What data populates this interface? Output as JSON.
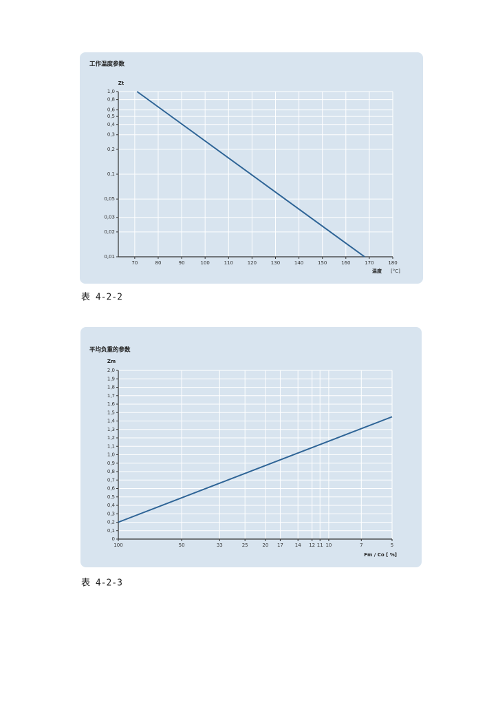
{
  "chart_data": [
    {
      "type": "line",
      "title": "工作温度参数",
      "y_label": "Zt",
      "x_label": "温度",
      "x_unit": "[°C]",
      "x": [
        71,
        168
      ],
      "values": [
        1.0,
        0.01
      ],
      "color": "#2e6496",
      "xlim": [
        63,
        180
      ],
      "xticks": [
        70,
        80,
        90,
        100,
        110,
        120,
        130,
        140,
        150,
        160,
        170,
        180
      ],
      "ylim": [
        0.01,
        1.0
      ],
      "ylog": true,
      "yticks": [
        {
          "value": 0.01,
          "label": "0,01"
        },
        {
          "value": 0.02,
          "label": "0,02"
        },
        {
          "value": 0.03,
          "label": "0,03"
        },
        {
          "value": 0.05,
          "label": "0,05"
        },
        {
          "value": 0.1,
          "label": "0,1"
        },
        {
          "value": 0.2,
          "label": "0,2"
        },
        {
          "value": 0.3,
          "label": "0,3"
        },
        {
          "value": 0.4,
          "label": "0,4"
        },
        {
          "value": 0.5,
          "label": "0,5"
        },
        {
          "value": 0.6,
          "label": "0,6"
        },
        {
          "value": 0.8,
          "label": "0,8"
        },
        {
          "value": 1.0,
          "label": "1,0"
        }
      ],
      "grid": true
    },
    {
      "type": "line",
      "title": "平均负重的参数",
      "y_label": "Zm",
      "x_label": "Fm / Co [ %]",
      "x": [
        100,
        5
      ],
      "values": [
        0.2,
        1.45
      ],
      "color": "#2e6496",
      "xlim": [
        100,
        5
      ],
      "xlog": true,
      "xticks": [
        100,
        50,
        33,
        25,
        20,
        17,
        14,
        12,
        11,
        10,
        7,
        5
      ],
      "ylim": [
        0,
        2.0
      ],
      "yticks": [
        0,
        {
          "value": 0.1,
          "label": "0,1"
        },
        {
          "value": 0.2,
          "label": "0,2"
        },
        {
          "value": 0.3,
          "label": "0,3"
        },
        {
          "value": 0.4,
          "label": "0,4"
        },
        {
          "value": 0.5,
          "label": "0,5"
        },
        {
          "value": 0.6,
          "label": "0,6"
        },
        {
          "value": 0.7,
          "label": "0,7"
        },
        {
          "value": 0.8,
          "label": "0,8"
        },
        {
          "value": 0.9,
          "label": "0,9"
        },
        {
          "value": 1.0,
          "label": "1,0"
        },
        {
          "value": 1.1,
          "label": "1,1"
        },
        {
          "value": 1.2,
          "label": "1,2"
        },
        {
          "value": 1.3,
          "label": "1,3"
        },
        {
          "value": 1.4,
          "label": "1,4"
        },
        {
          "value": 1.5,
          "label": "1,5"
        },
        {
          "value": 1.6,
          "label": "1,6"
        },
        {
          "value": 1.7,
          "label": "1,7"
        },
        {
          "value": 1.8,
          "label": "1,8"
        },
        {
          "value": 1.9,
          "label": "1,9"
        },
        {
          "value": 2.0,
          "label": "2,0"
        }
      ],
      "grid": true
    }
  ],
  "captions": [
    "表 4-2-2",
    "表 4-2-3"
  ]
}
